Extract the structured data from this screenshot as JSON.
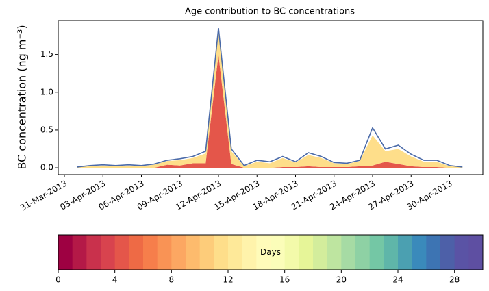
{
  "chart_data": {
    "type": "area",
    "title": "Age contribution to BC concentrations",
    "y_label": "BC concentration (ng m⁻³)",
    "x": [
      "01-Apr-2013",
      "02-Apr-2013",
      "03-Apr-2013",
      "04-Apr-2013",
      "05-Apr-2013",
      "06-Apr-2013",
      "07-Apr-2013",
      "08-Apr-2013",
      "09-Apr-2013",
      "10-Apr-2013",
      "11-Apr-2013",
      "12-Apr-2013",
      "13-Apr-2013",
      "14-Apr-2013",
      "15-Apr-2013",
      "16-Apr-2013",
      "17-Apr-2013",
      "18-Apr-2013",
      "19-Apr-2013",
      "20-Apr-2013",
      "21-Apr-2013",
      "22-Apr-2013",
      "23-Apr-2013",
      "24-Apr-2013",
      "25-Apr-2013",
      "26-Apr-2013",
      "27-Apr-2013",
      "28-Apr-2013",
      "29-Apr-2013",
      "30-Apr-2013",
      "01-May-2013"
    ],
    "series": [
      {
        "color": "#e4564a",
        "stacked": true,
        "values": [
          0,
          0,
          0,
          0,
          0,
          0,
          0,
          0.04,
          0.03,
          0.06,
          0.06,
          1.5,
          0.05,
          0,
          0,
          0,
          0.01,
          0.01,
          0.02,
          0.01,
          0.01,
          0.01,
          0.02,
          0.03,
          0.08,
          0.05,
          0.02,
          0.01,
          0.01,
          0,
          0
        ]
      },
      {
        "color": "#fede8a",
        "stacked": true,
        "values": [
          0.01,
          0.02,
          0.03,
          0.02,
          0.03,
          0.02,
          0.04,
          0.05,
          0.07,
          0.07,
          0.13,
          0.3,
          0.17,
          0.02,
          0.08,
          0.06,
          0.12,
          0.06,
          0.15,
          0.12,
          0.05,
          0.04,
          0.07,
          0.4,
          0.14,
          0.2,
          0.13,
          0.07,
          0.07,
          0.02,
          0.01
        ]
      },
      {
        "color": "#4a6aa8",
        "type": "line",
        "values": [
          0.01,
          0.03,
          0.04,
          0.03,
          0.04,
          0.03,
          0.05,
          0.1,
          0.12,
          0.15,
          0.22,
          1.85,
          0.25,
          0.03,
          0.1,
          0.08,
          0.15,
          0.08,
          0.2,
          0.15,
          0.07,
          0.06,
          0.1,
          0.53,
          0.25,
          0.3,
          0.18,
          0.1,
          0.1,
          0.03,
          0.01
        ]
      }
    ],
    "xlim": [
      "31-Mar-2013",
      "02-May-2013"
    ],
    "xticks": [
      "31-Mar-2013",
      "03-Apr-2013",
      "06-Apr-2013",
      "09-Apr-2013",
      "12-Apr-2013",
      "15-Apr-2013",
      "18-Apr-2013",
      "21-Apr-2013",
      "24-Apr-2013",
      "27-Apr-2013",
      "30-Apr-2013"
    ],
    "ylim": [
      -0.09,
      1.95
    ],
    "yticks": [
      {
        "value": 0,
        "label": "0.0"
      },
      {
        "value": 0.5,
        "label": "0.5"
      },
      {
        "value": 1,
        "label": "1.0"
      },
      {
        "value": 1.5,
        "label": "1.5"
      }
    ],
    "colorbar": {
      "label": "Days",
      "lim": [
        0,
        30
      ],
      "ticks": [
        0,
        4,
        8,
        12,
        16,
        20,
        24,
        28
      ],
      "colors": [
        "#9e0142",
        "#b41947",
        "#c9314c",
        "#d8434e",
        "#e4564a",
        "#ee6a45",
        "#f67e4b",
        "#f99355",
        "#fca762",
        "#fdbb6d",
        "#fdcc7a",
        "#fede8a",
        "#fee999",
        "#fff3ab",
        "#fffbb9",
        "#fbfdb9",
        "#f3faaa",
        "#e6f598",
        "#d3ed9c",
        "#bee5a0",
        "#a6dba4",
        "#8ed1a4",
        "#74c7a5",
        "#5fb6a9",
        "#4ba0b1",
        "#3a8abb",
        "#3d74b3",
        "#4d60a8",
        "#5a53a5",
        "#5e4fa2"
      ]
    }
  }
}
